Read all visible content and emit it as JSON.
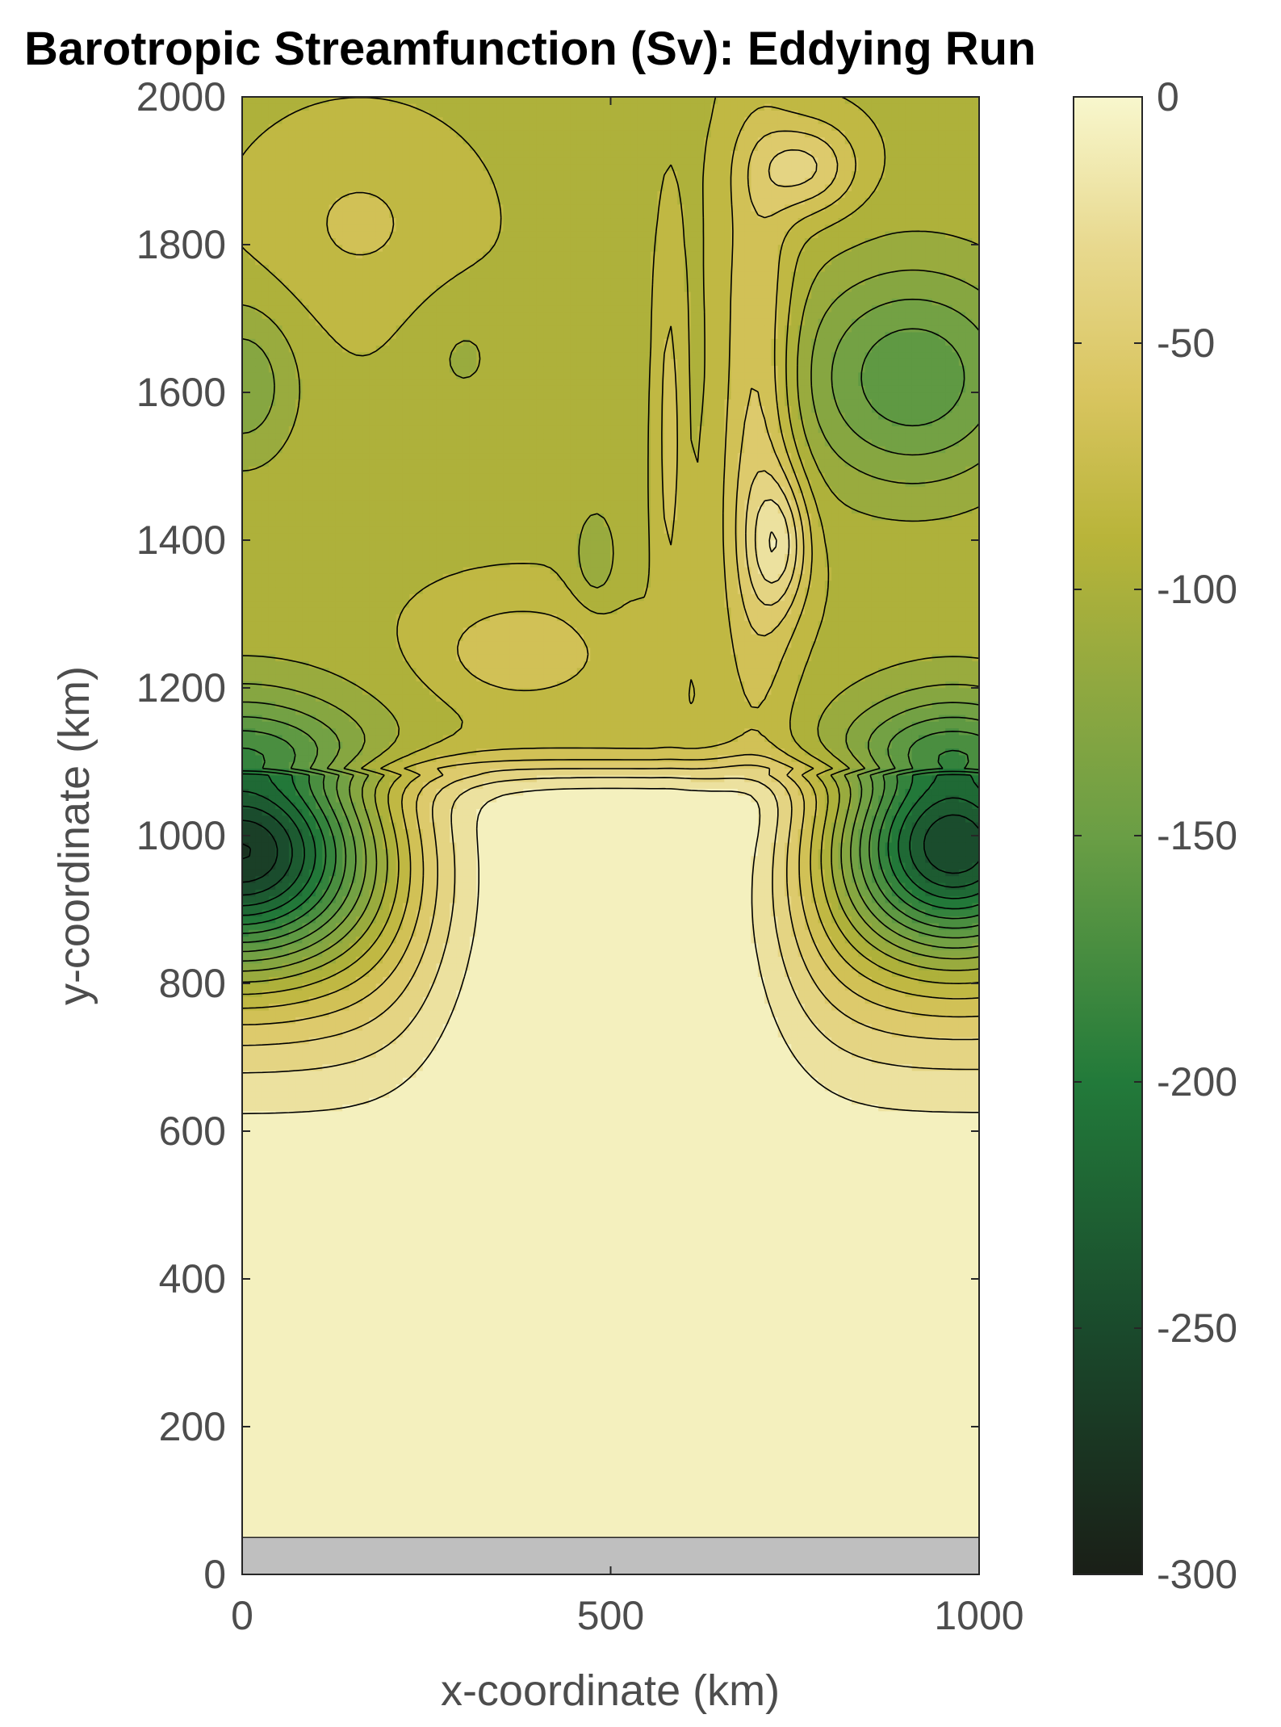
{
  "chart_data": {
    "type": "contourf",
    "title": "Barotropic Streamfunction (Sv): Eddying Run",
    "xlabel": "x-coordinate (km)",
    "ylabel": "y-coordinate (km)",
    "xlim": [
      0,
      1000
    ],
    "ylim": [
      0,
      2000
    ],
    "x_ticks": [
      0,
      500,
      1000
    ],
    "y_ticks": [
      0,
      200,
      400,
      600,
      800,
      1000,
      1200,
      1400,
      1600,
      1800,
      2000
    ],
    "colorbar": {
      "range": [
        -300,
        0
      ],
      "ticks": [
        0,
        -50,
        -100,
        -150,
        -200,
        -250,
        -300
      ],
      "colors": [
        {
          "value": 0,
          "color": "#f8f7cd"
        },
        {
          "value": -30,
          "color": "#e8d98f"
        },
        {
          "value": -60,
          "color": "#d9c560"
        },
        {
          "value": -90,
          "color": "#b8b439"
        },
        {
          "value": -120,
          "color": "#8fa840"
        },
        {
          "value": -150,
          "color": "#6a9e45"
        },
        {
          "value": -200,
          "color": "#227a3a"
        },
        {
          "value": -250,
          "color": "#1a4a2c"
        },
        {
          "value": -300,
          "color": "#1a1f17"
        }
      ]
    },
    "land_mask_color": "#bfbfbf",
    "land_mask_y_range": [
      0,
      50
    ],
    "contour_interval": 15,
    "features": [
      {
        "kind": "min",
        "x": 0,
        "y": 990,
        "value": -300
      },
      {
        "kind": "min",
        "x": 965,
        "y": 1000,
        "value": -285
      },
      {
        "kind": "min",
        "x": 910,
        "y": 1620,
        "value": -165
      },
      {
        "kind": "min",
        "x": 0,
        "y": 1610,
        "value": -135
      },
      {
        "kind": "min",
        "x": 480,
        "y": 1380,
        "value": -120
      },
      {
        "kind": "max",
        "x": 765,
        "y": 1905,
        "value": -45
      },
      {
        "kind": "max",
        "x": 730,
        "y": 1395,
        "value": -45
      }
    ]
  }
}
